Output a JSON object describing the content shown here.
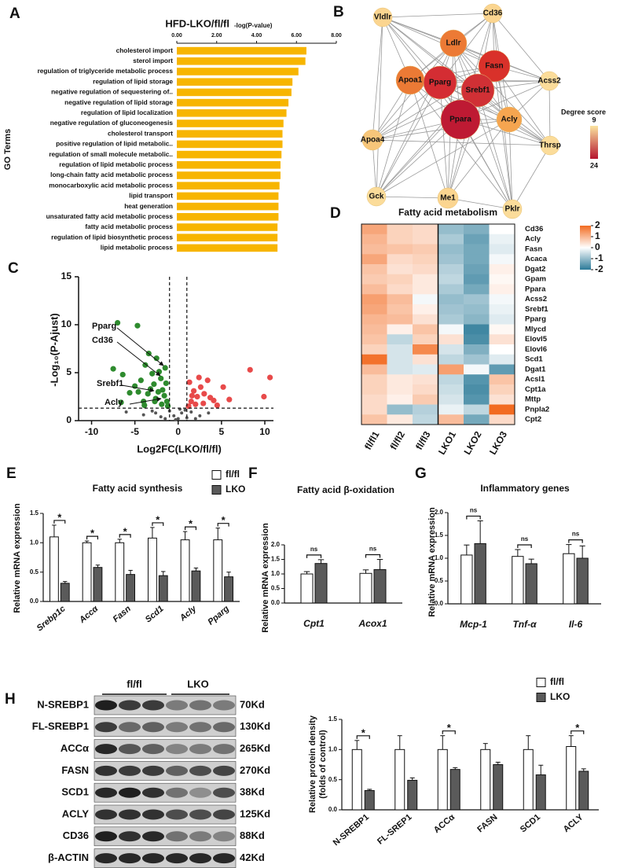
{
  "chart_data": [
    {
      "panel": "A",
      "type": "hbar",
      "title": "HFD-LKO/fl/fl",
      "x_label": "-log(P-value)",
      "y_label": "GO Terms",
      "categories": [
        "cholesterol import",
        "sterol import",
        "regulation of triglyceride metabolic process",
        "regulation of lipid storage",
        "negative regulation of sequestering of..",
        "negative regulation of lipid storage",
        "regulation of lipid localization",
        "negative regulation of gluconeogenesis",
        "cholesterol transport",
        "positive regulation of lipid metabolic..",
        "regulation of small molecule metabolic..",
        "regulation of lipid metabolic process",
        "long-chain fatty acid metabolic process",
        "monocarboxylic acid metabolic process",
        "lipid transport",
        "heat generation",
        "unsaturated fatty acid metabolic process",
        "fatty acid metabolic process",
        "regulation of lipid biosynthetic process",
        "lipid metabolic process"
      ],
      "values": [
        6.5,
        6.45,
        6.1,
        5.8,
        5.75,
        5.6,
        5.5,
        5.35,
        5.3,
        5.3,
        5.25,
        5.2,
        5.2,
        5.15,
        5.1,
        5.1,
        5.1,
        5.05,
        5.05,
        5.05
      ],
      "color": "#f7b500",
      "xlim": [
        0,
        8
      ],
      "xticks": [
        {
          "value": 0,
          "label": "0.00"
        },
        {
          "value": 2,
          "label": "2.00"
        },
        {
          "value": 4,
          "label": "4.00"
        },
        {
          "value": 6,
          "label": "6.00"
        },
        {
          "value": 8,
          "label": "8.00"
        }
      ]
    },
    {
      "panel": "B",
      "type": "network",
      "nodes": [
        {
          "label": "Vldlr",
          "color": "#fbd590"
        },
        {
          "label": "Cd36",
          "color": "#fbd590"
        },
        {
          "label": "Ldlr",
          "color": "#ec7a35"
        },
        {
          "label": "Fasn",
          "color": "#d9312a"
        },
        {
          "label": "Apoa1",
          "color": "#eb7a35"
        },
        {
          "label": "Pparg",
          "color": "#d42d33"
        },
        {
          "label": "Srebf1",
          "color": "#d03035"
        },
        {
          "label": "Acss2",
          "color": "#fbdc9a"
        },
        {
          "label": "Ppara",
          "color": "#be1a33"
        },
        {
          "label": "Acly",
          "color": "#f5a550"
        },
        {
          "label": "Apoa4",
          "color": "#f7c67a"
        },
        {
          "label": "Thrsp",
          "color": "#fbdc9a"
        },
        {
          "label": "Gck",
          "color": "#fbdc9a"
        },
        {
          "label": "Me1",
          "color": "#fbd590"
        },
        {
          "label": "Pklr",
          "color": "#fbdc9a"
        }
      ],
      "legend_title": "Degree score",
      "colorbar_ticks": [
        9,
        24
      ],
      "colorbar_colors": [
        "#fbe4a0",
        "#b5152e"
      ]
    },
    {
      "panel": "C",
      "type": "scatter",
      "x_label": "Log2FC(LKO/fl/fl)",
      "y_label": "-Log₁₀(P-Ajust)",
      "xlim": [
        -11.5,
        11
      ],
      "ylim": [
        0,
        15
      ],
      "xticks": [
        -10,
        -5,
        0,
        5,
        10
      ],
      "yticks": [
        0,
        5,
        10,
        15
      ],
      "vlines": [
        -1,
        1
      ],
      "hline": 1.3,
      "annotations": [
        "Pparg",
        "Cd36",
        "Srebf1",
        "Acly"
      ],
      "series": [
        {
          "color": "#2e8b2e",
          "x": [
            -7.0,
            -4.7,
            -3.4,
            -7.5,
            -6.4,
            -5.0,
            -4.3,
            -3.8,
            -3.0,
            -2.8,
            -2.5,
            -2.2,
            -2.0,
            -1.8,
            -1.6,
            -1.4,
            -1.3,
            -2.6,
            -3.5,
            -4.0,
            -5.6,
            -6.6,
            -1.9,
            -2.3,
            -1.5,
            -3.2,
            -2.7,
            -1.2,
            -4.6,
            -3.9
          ],
          "values": [
            10.2,
            9.9,
            7.0,
            5.4,
            4.8,
            3.6,
            4.2,
            5.8,
            4.9,
            3.8,
            6.5,
            5.1,
            4.4,
            3.2,
            2.6,
            3.9,
            2.0,
            2.3,
            2.8,
            2.0,
            2.9,
            1.9,
            1.7,
            3.0,
            5.5,
            3.3,
            2.0,
            1.5,
            3.0,
            1.6
          ]
        },
        {
          "color": "#e84a4a",
          "x": [
            8.3,
            10.6,
            9.9,
            5.2,
            4.1,
            3.4,
            3.0,
            2.6,
            2.2,
            1.8,
            1.5,
            1.3,
            2.0,
            2.9,
            1.6,
            3.7,
            2.4,
            1.2,
            4.5,
            5.9
          ],
          "values": [
            5.3,
            4.5,
            2.5,
            3.5,
            2.1,
            4.2,
            2.8,
            3.5,
            2.5,
            3.1,
            2.0,
            4.0,
            1.7,
            1.8,
            2.6,
            2.4,
            4.5,
            1.5,
            1.6,
            2.2
          ]
        },
        {
          "color": "#555555",
          "x": [
            -6.0,
            -4.0,
            -3.0,
            -2.0,
            -1.0,
            -0.5,
            0,
            0.4,
            0.8,
            1.5,
            2.5,
            3.5,
            -1.5,
            0.2,
            -0.3,
            1.0,
            -2.6,
            2.0
          ],
          "values": [
            0.9,
            0.6,
            1.0,
            0.4,
            1.0,
            0.5,
            0.2,
            0.8,
            1.1,
            0.9,
            0.5,
            0.8,
            0.2,
            1.2,
            0.1,
            0.3,
            0.8,
            0.2
          ]
        }
      ]
    },
    {
      "panel": "D",
      "type": "heatmap",
      "title": "Fatty acid metabolism",
      "rows": [
        "Cd36",
        "Acly",
        "Fasn",
        "Acaca",
        "Dgat2",
        "Gpam",
        "Ppara",
        "Acss2",
        "Srebf1",
        "Pparg",
        "Mlycd",
        "Elovl5",
        "Elovl6",
        "Scd1",
        "Dgat1",
        "Acsl1",
        "Cpt1a",
        "Mttp",
        "Pnpla2",
        "Cpt2"
      ],
      "columns": [
        "fl/fl1",
        "fl/fl2",
        "fl/fl3",
        "LKO1",
        "LKO2",
        "LKO3"
      ],
      "values": [
        [
          1.2,
          0.6,
          0.5,
          -1.0,
          -1.2,
          0.0
        ],
        [
          1.0,
          0.6,
          0.5,
          -0.8,
          -1.4,
          -0.2
        ],
        [
          0.9,
          0.8,
          0.7,
          -1.0,
          -1.3,
          -0.3
        ],
        [
          1.2,
          0.5,
          0.6,
          -0.9,
          -1.3,
          -0.1
        ],
        [
          0.8,
          0.4,
          0.5,
          -0.7,
          -1.4,
          0.2
        ],
        [
          0.7,
          0.6,
          0.3,
          -0.6,
          -1.5,
          0.1
        ],
        [
          0.9,
          0.5,
          0.3,
          -0.8,
          -1.3,
          0.2
        ],
        [
          1.3,
          0.9,
          -0.1,
          -1.0,
          -0.9,
          -0.1
        ],
        [
          1.2,
          0.8,
          0.2,
          -0.9,
          -1.0,
          -0.2
        ],
        [
          1.0,
          0.9,
          0.4,
          -0.8,
          -1.1,
          -0.3
        ],
        [
          0.9,
          0.2,
          0.8,
          -0.1,
          -1.8,
          0.1
        ],
        [
          0.8,
          -0.6,
          0.6,
          0.4,
          -1.7,
          0.4
        ],
        [
          0.6,
          -0.4,
          1.6,
          -0.4,
          -1.2,
          0.0
        ],
        [
          1.9,
          -0.4,
          0.4,
          -0.6,
          -0.9,
          -0.3
        ],
        [
          0.9,
          -0.4,
          -0.3,
          1.3,
          -0.1,
          -1.5
        ],
        [
          0.6,
          0.3,
          0.4,
          -0.6,
          -1.6,
          0.8
        ],
        [
          0.6,
          0.3,
          0.5,
          -0.5,
          -1.7,
          0.6
        ],
        [
          0.5,
          0.2,
          0.7,
          -0.4,
          -1.6,
          0.4
        ],
        [
          0.5,
          -1.0,
          -0.7,
          -0.2,
          -0.6,
          2.0
        ],
        [
          0.8,
          0.3,
          -0.6,
          0.9,
          -1.3,
          0.5
        ]
      ],
      "clim": [
        -2,
        2
      ],
      "colorbar_ticks": [
        2,
        1,
        0,
        -1,
        -2
      ],
      "colors": [
        "#2b7a98",
        "#ffffff",
        "#f26b21"
      ]
    },
    {
      "panel": "E",
      "type": "bar",
      "title": "Fatty acid synthesis",
      "y_label": "Relative mRNA expression",
      "italic_categories": true,
      "categories": [
        "Srebp1c",
        "Accα",
        "Fasn",
        "Scd1",
        "Acly",
        "Pparg"
      ],
      "series": [
        {
          "name": "fl/fl",
          "color": "#ffffff",
          "values": [
            1.1,
            1.0,
            1.0,
            1.08,
            1.05,
            1.05
          ],
          "errors": [
            0.2,
            0.03,
            0.06,
            0.18,
            0.14,
            0.2
          ]
        },
        {
          "name": "LKO",
          "color": "#5a5a5a",
          "values": [
            0.31,
            0.58,
            0.46,
            0.44,
            0.52,
            0.42
          ],
          "errors": [
            0.03,
            0.04,
            0.07,
            0.07,
            0.05,
            0.08
          ]
        }
      ],
      "significance": [
        "*",
        "*",
        "*",
        "*",
        "*",
        "*"
      ],
      "ylim": [
        0,
        1.5
      ],
      "yticks": [
        {
          "value": 0,
          "label": "0.0"
        },
        {
          "value": 0.5,
          "label": "0.5"
        },
        {
          "value": 1,
          "label": "1.0"
        },
        {
          "value": 1.5,
          "label": "1.5"
        }
      ]
    },
    {
      "panel": "F",
      "type": "bar",
      "title": "Fatty acid  β-oxidation",
      "y_label": "Relative mRNA expression",
      "italic_categories": true,
      "categories": [
        "Cpt1",
        "Acox1"
      ],
      "series": [
        {
          "color": "#ffffff",
          "values": [
            1.0,
            1.02
          ],
          "errors": [
            0.08,
            0.12
          ]
        },
        {
          "color": "#5a5a5a",
          "values": [
            1.36,
            1.15
          ],
          "errors": [
            0.13,
            0.35
          ]
        }
      ],
      "significance": [
        "ns",
        "ns"
      ],
      "ylim": [
        0,
        2
      ],
      "yticks": [
        {
          "value": 0,
          "label": "0.0"
        },
        {
          "value": 0.5,
          "label": "0.5"
        },
        {
          "value": 1,
          "label": "1.0"
        },
        {
          "value": 1.5,
          "label": "1.5"
        },
        {
          "value": 2,
          "label": "2.0"
        }
      ]
    },
    {
      "panel": "G",
      "type": "bar",
      "title": "Inflammatory genes",
      "y_label": "Relative mRNA expression",
      "italic_categories": true,
      "categories": [
        "Mcp-1",
        "Tnf-α",
        "Il-6"
      ],
      "series": [
        {
          "color": "#ffffff",
          "values": [
            1.07,
            1.04,
            1.1
          ],
          "errors": [
            0.22,
            0.15,
            0.2
          ]
        },
        {
          "color": "#5a5a5a",
          "values": [
            1.32,
            0.88,
            1.0
          ],
          "errors": [
            0.5,
            0.1,
            0.27
          ]
        }
      ],
      "significance": [
        "ns",
        "ns",
        "ns"
      ],
      "ylim": [
        0,
        2
      ],
      "yticks": [
        {
          "value": 0,
          "label": "0.0"
        },
        {
          "value": 0.5,
          "label": "0.5"
        },
        {
          "value": 1,
          "label": "1.0"
        },
        {
          "value": 1.5,
          "label": "1.5"
        },
        {
          "value": 2,
          "label": "2.0"
        }
      ]
    },
    {
      "panel": "H",
      "type": "blot",
      "group_labels": [
        "fl/fl",
        "LKO"
      ],
      "proteins": [
        "N-SREBP1",
        "FL-SREBP1",
        "ACCα",
        "FASN",
        "SCD1",
        "ACLY",
        "CD36",
        "β-ACTIN"
      ],
      "sizes": [
        "70Kd",
        "130Kd",
        "265Kd",
        "270Kd",
        "38Kd",
        "125Kd",
        "88Kd",
        "42Kd"
      ]
    },
    {
      "type": "bar",
      "y_label": [
        "Relative protein density",
        "(folds of control)"
      ],
      "italic_categories": false,
      "categories": [
        "N-SREBP1",
        "FL-SREP1",
        "ACCα",
        "FASN",
        "SCD1",
        "ACLY"
      ],
      "series": [
        {
          "name": "fl/fl",
          "color": "#ffffff",
          "values": [
            1.0,
            1.0,
            1.0,
            1.0,
            1.0,
            1.05
          ],
          "errors": [
            0.15,
            0.23,
            0.23,
            0.1,
            0.23,
            0.18
          ]
        },
        {
          "name": "LKO",
          "color": "#5a5a5a",
          "values": [
            0.32,
            0.49,
            0.67,
            0.75,
            0.58,
            0.64
          ],
          "errors": [
            0.02,
            0.04,
            0.03,
            0.04,
            0.16,
            0.04
          ]
        }
      ],
      "significance": [
        "*",
        null,
        "*",
        null,
        null,
        "*"
      ],
      "ylim": [
        0,
        1.5
      ],
      "yticks": [
        {
          "value": 0,
          "label": "0.0"
        },
        {
          "value": 0.5,
          "label": "0.5"
        },
        {
          "value": 1,
          "label": "1.0"
        },
        {
          "value": 1.5,
          "label": "1.5"
        }
      ]
    }
  ]
}
